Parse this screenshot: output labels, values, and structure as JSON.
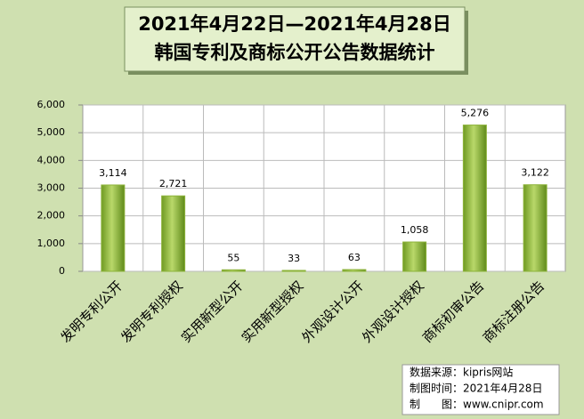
{
  "chart_data": {
    "type": "bar",
    "title": "2021年4月22日—2021年4月28日",
    "subtitle": "韩国专利及商标公开公告数据统计",
    "categories": [
      "发明专利公开",
      "发明专利授权",
      "实用新型公开",
      "实用新型授权",
      "外观设计公开",
      "外观设计授权",
      "商标初审公告",
      "商标注册公告"
    ],
    "values": [
      3114,
      2721,
      55,
      33,
      63,
      1058,
      5276,
      3122
    ],
    "value_labels": [
      "3,114",
      "2,721",
      "55",
      "33",
      "63",
      "1,058",
      "5,276",
      "3,122"
    ],
    "color": "#8db33a",
    "ylim": [
      0,
      6000
    ],
    "yticks": [
      0,
      {
        "value": 1000,
        "label": "1,000"
      },
      {
        "value": 2000,
        "label": "2,000"
      },
      {
        "value": 3000,
        "label": "3,000"
      },
      {
        "value": 4000,
        "label": "4,000"
      },
      {
        "value": 5000,
        "label": "5,000"
      },
      {
        "value": 6000,
        "label": "6,000"
      }
    ],
    "grid": true,
    "notes": [
      "数据来源：kipris网站",
      "制图时间：2021年4月28日",
      "制　　图：www.cnipr.com"
    ]
  }
}
